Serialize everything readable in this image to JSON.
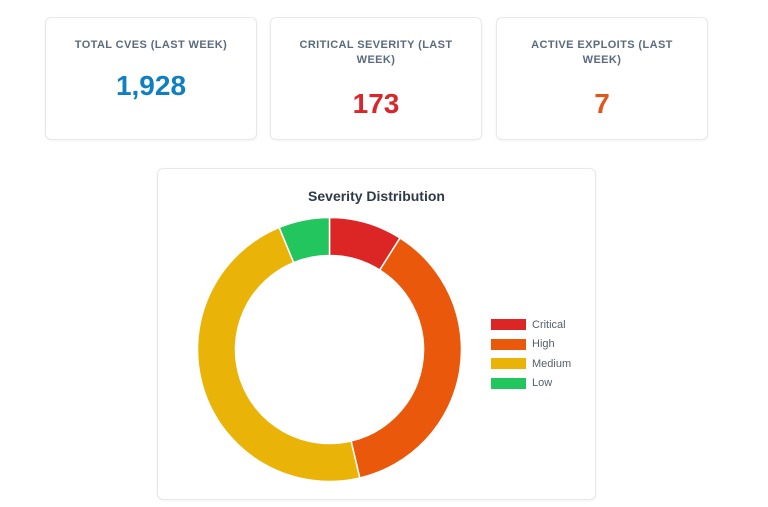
{
  "stats": [
    {
      "label": "TOTAL CVES (LAST WEEK)",
      "value": "1,928",
      "color": "#0f7fc2"
    },
    {
      "label": "CRITICAL SEVERITY (LAST WEEK)",
      "value": "173",
      "color": "#d8262a"
    },
    {
      "label": "ACTIVE EXPLOITS (LAST WEEK)",
      "value": "7",
      "color": "#e2561b"
    }
  ],
  "chart_data": {
    "type": "pie",
    "donut": true,
    "title": "Severity Distribution",
    "categories": [
      "Critical",
      "High",
      "Medium",
      "Low"
    ],
    "values": [
      173,
      720,
      915,
      120
    ],
    "colors": [
      "#dc2626",
      "#ea580c",
      "#eab308",
      "#22c55e"
    ],
    "legend_position": "right"
  }
}
